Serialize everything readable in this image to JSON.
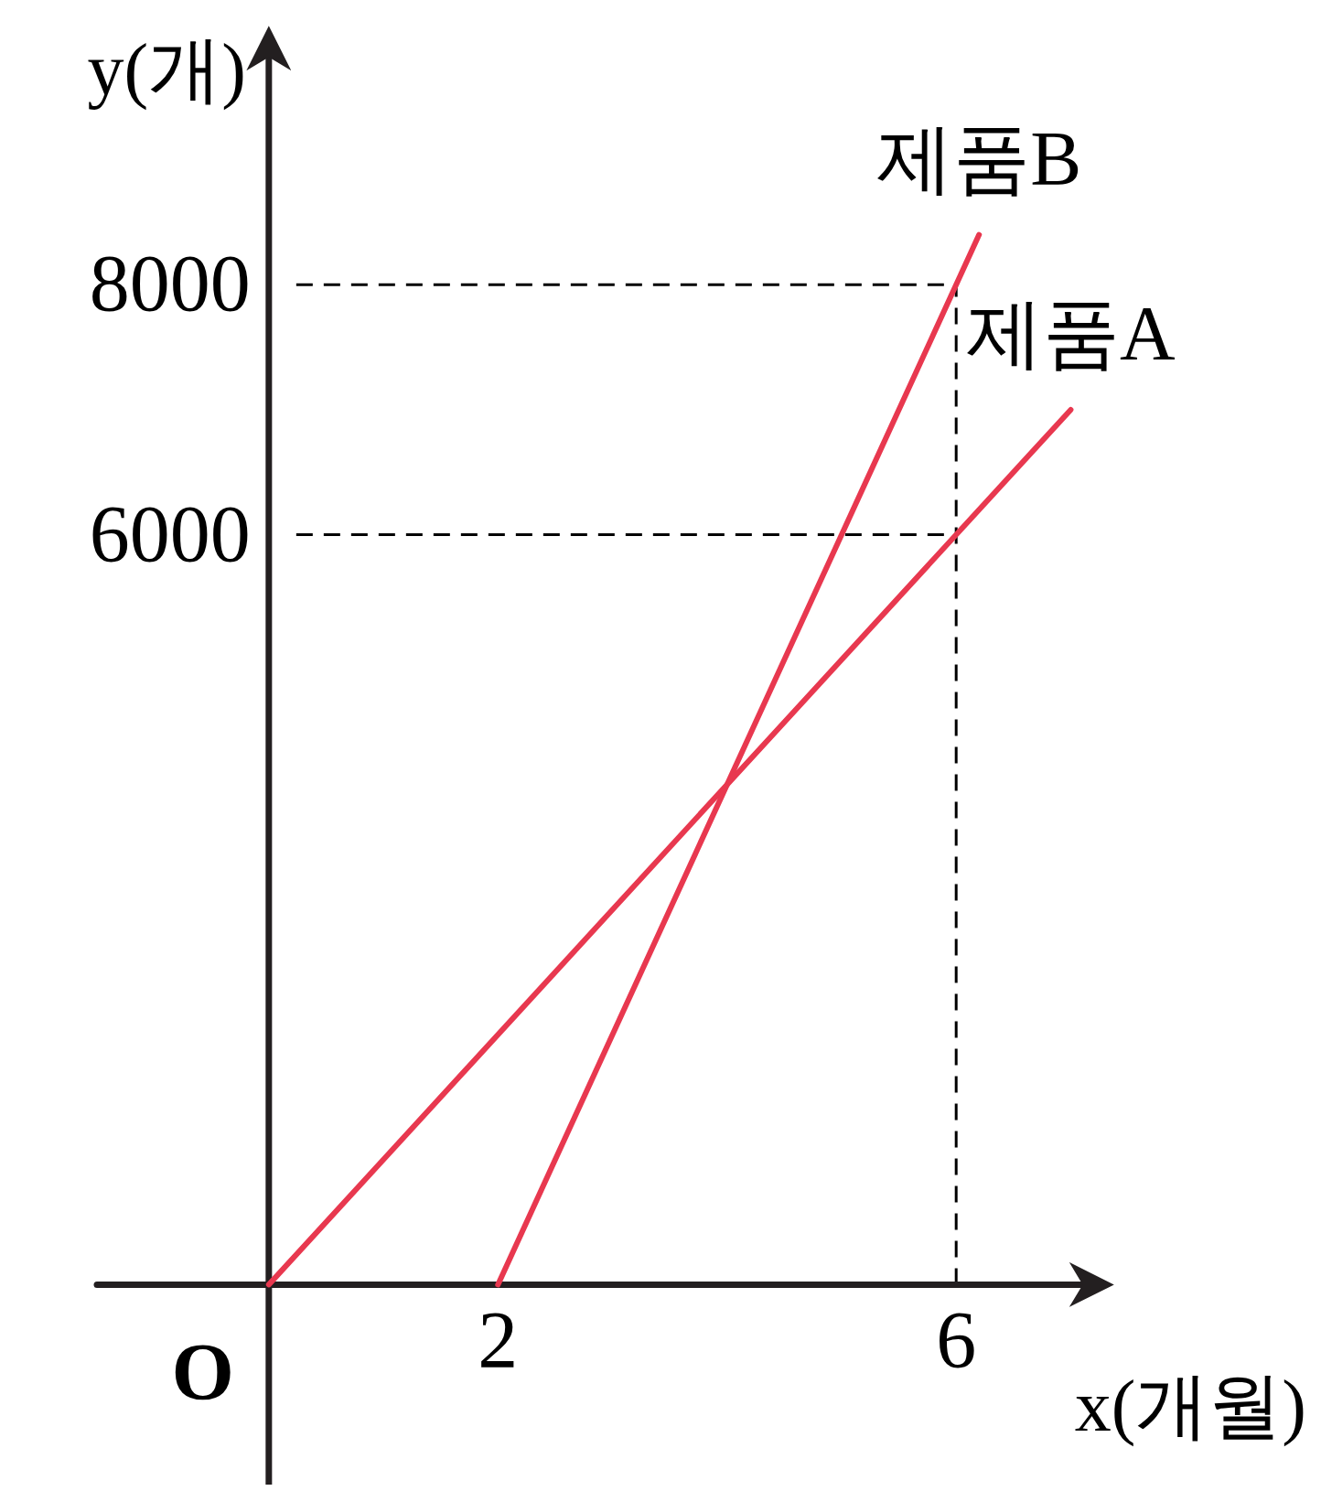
{
  "chart_data": {
    "type": "line",
    "xlabel": "x(개월)",
    "ylabel": "y(개)",
    "xlim": [
      -1.5,
      7.3
    ],
    "ylim": [
      -1600,
      10000
    ],
    "xticks": [
      2,
      6
    ],
    "yticks": [
      6000,
      8000
    ],
    "annotations": [
      "O"
    ],
    "series": [
      {
        "name": "제품A",
        "color": "#e8384f",
        "x": [
          0,
          7
        ],
        "values": [
          0,
          7000
        ]
      },
      {
        "name": "제품B",
        "color": "#e8384f",
        "x": [
          2,
          6.2
        ],
        "values": [
          0,
          8400
        ]
      }
    ],
    "ref_lines": [
      {
        "axis": "y",
        "value": 8000,
        "line_style": "dashed",
        "color": "#000000"
      },
      {
        "axis": "y",
        "value": 6000,
        "line_style": "dashed",
        "color": "#000000"
      },
      {
        "axis": "x",
        "value": 6,
        "line_style": "dashed",
        "color": "#000000"
      }
    ],
    "grid": false,
    "marker": "none",
    "line_style": "solid"
  }
}
